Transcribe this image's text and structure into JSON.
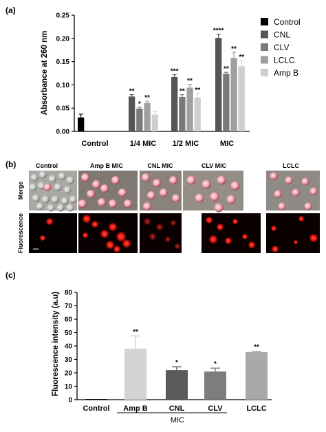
{
  "panels": {
    "a": "(a)",
    "b": "(b)",
    "c": "(c)"
  },
  "chart_data": [
    {
      "type": "bar",
      "ylabel": "Absorbance at 260 nm",
      "ylim": [
        0,
        0.25
      ],
      "yticks": [
        "0.00",
        "0.05",
        "0.10",
        "0.15",
        "0.20",
        "0.25"
      ],
      "yticks_values": [
        0,
        0.05,
        0.1,
        0.15,
        0.2,
        0.25
      ],
      "legend_position": "right",
      "groups": [
        {
          "label": "Control",
          "bars": [
            {
              "series": "Control",
              "value": 0.03,
              "err": 0.007,
              "sig": "",
              "color": "#000000"
            }
          ]
        },
        {
          "label": "1/4 MIC",
          "bars": [
            {
              "series": "CNL",
              "value": 0.075,
              "err": 0.004,
              "sig": "**",
              "color": "#555555"
            },
            {
              "series": "CLV",
              "value": 0.049,
              "err": 0.003,
              "sig": "*",
              "color": "#7a7a7a"
            },
            {
              "series": "LCLC",
              "value": 0.061,
              "err": 0.004,
              "sig": "**",
              "color": "#a0a0a0"
            },
            {
              "series": "Amp B",
              "value": 0.036,
              "err": 0.007,
              "sig": "",
              "color": "#cfcfcf"
            }
          ]
        },
        {
          "label": "1/2 MIC",
          "bars": [
            {
              "series": "CNL",
              "value": 0.117,
              "err": 0.005,
              "sig": "***",
              "color": "#555555"
            },
            {
              "series": "CLV",
              "value": 0.074,
              "err": 0.005,
              "sig": "**",
              "color": "#7a7a7a"
            },
            {
              "series": "LCLC",
              "value": 0.094,
              "err": 0.007,
              "sig": "**",
              "color": "#a0a0a0"
            },
            {
              "series": "Amp B",
              "value": 0.073,
              "err": 0.008,
              "sig": "**",
              "color": "#cfcfcf"
            }
          ]
        },
        {
          "label": "MIC",
          "bars": [
            {
              "series": "CNL",
              "value": 0.201,
              "err": 0.008,
              "sig": "****",
              "color": "#555555"
            },
            {
              "series": "CLV",
              "value": 0.124,
              "err": 0.003,
              "sig": "**",
              "color": "#7a7a7a"
            },
            {
              "series": "LCLC",
              "value": 0.158,
              "err": 0.012,
              "sig": "**",
              "color": "#a0a0a0"
            },
            {
              "series": "Amp B",
              "value": 0.14,
              "err": 0.012,
              "sig": "**",
              "color": "#cfcfcf"
            }
          ]
        }
      ],
      "legend": [
        {
          "name": "Control",
          "color": "#000000"
        },
        {
          "name": "CNL",
          "color": "#555555"
        },
        {
          "name": "CLV",
          "color": "#7a7a7a"
        },
        {
          "name": "LCLC",
          "color": "#a0a0a0"
        },
        {
          "name": "Amp B",
          "color": "#cfcfcf"
        }
      ]
    },
    {
      "type": "bar",
      "ylabel": "Fluorescence intensity (a.u)",
      "ylim": [
        0,
        80
      ],
      "yticks": [
        "0",
        "10",
        "20",
        "30",
        "40",
        "50",
        "60",
        "70",
        "80"
      ],
      "yticks_values": [
        0,
        10,
        20,
        30,
        40,
        50,
        60,
        70,
        80
      ],
      "group_label": "MIC",
      "bars": [
        {
          "label": "Control",
          "value": 0.5,
          "err": 0,
          "sig": "",
          "color": "#000000"
        },
        {
          "label": "Amp B",
          "value": 38,
          "err": 9.5,
          "sig": "**",
          "color": "#d3d3d3"
        },
        {
          "label": "CNL",
          "value": 22,
          "err": 2.5,
          "sig": "*",
          "color": "#5a5a5a"
        },
        {
          "label": "CLV",
          "value": 21,
          "err": 2.5,
          "sig": "*",
          "color": "#7d7d7d"
        },
        {
          "label": "LCLC",
          "value": 35.5,
          "err": 0.6,
          "sig": "**",
          "color": "#a9a9a9"
        }
      ]
    }
  ],
  "micrographs": {
    "columns": [
      "Control",
      "Amp B MIC",
      "CNL MIC",
      "CLV MIC",
      "LCLC"
    ],
    "rows": [
      "Merge",
      "Fluorescence"
    ]
  }
}
